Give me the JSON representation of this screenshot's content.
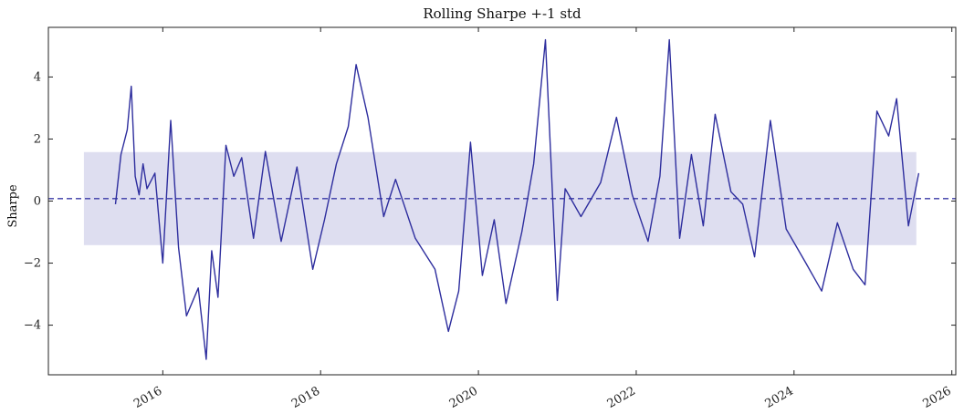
{
  "chart_data": {
    "type": "line",
    "title": "Rolling Sharpe +-1 std",
    "xlabel": "",
    "ylabel": "Sharpe",
    "xlim": [
      2014.55,
      2026.05
    ],
    "ylim": [
      -5.6,
      5.6
    ],
    "x_ticks": [
      2016,
      2018,
      2020,
      2022,
      2024,
      2026
    ],
    "x_tick_labels": [
      "2016",
      "2018",
      "2020",
      "2022",
      "2024",
      "2026"
    ],
    "y_ticks": [
      -4,
      -2,
      0,
      2,
      4
    ],
    "y_tick_labels": [
      "−4",
      "−2",
      "0",
      "2",
      "4"
    ],
    "grid": false,
    "legend": "none",
    "mean_line": 0.08,
    "std_band": [
      -1.42,
      1.58
    ],
    "band_x_range": [
      2015.0,
      2025.55
    ],
    "colors": {
      "line": "#2e2e9e",
      "band": "#dedef0",
      "mean": "#3a3aa6"
    },
    "series": [
      {
        "x": [
          2015.4,
          2015.47,
          2015.55,
          2015.6,
          2015.65,
          2015.7,
          2015.75,
          2015.8,
          2015.9,
          2016.0,
          2016.1,
          2016.2,
          2016.3,
          2016.45,
          2016.55,
          2016.62,
          2016.7,
          2016.8,
          2016.9,
          2017.0,
          2017.15,
          2017.3,
          2017.5,
          2017.7,
          2017.9,
          2018.05,
          2018.2,
          2018.35,
          2018.45,
          2018.6,
          2018.8,
          2018.95,
          2019.2,
          2019.45,
          2019.62,
          2019.75,
          2019.9,
          2020.05,
          2020.2,
          2020.35,
          2020.55,
          2020.7,
          2020.85,
          2021.0,
          2021.1,
          2021.3,
          2021.55,
          2021.75,
          2021.95,
          2022.15,
          2022.3,
          2022.42,
          2022.55,
          2022.7,
          2022.85,
          2023.0,
          2023.2,
          2023.35,
          2023.5,
          2023.7,
          2023.9,
          2024.15,
          2024.35,
          2024.55,
          2024.75,
          2024.9,
          2025.05,
          2025.2,
          2025.3,
          2025.45,
          2025.58
        ],
        "y": [
          -0.1,
          1.5,
          2.3,
          3.7,
          0.8,
          0.2,
          1.2,
          0.4,
          0.9,
          -2.0,
          2.6,
          -1.5,
          -3.7,
          -2.8,
          -5.1,
          -1.6,
          -3.1,
          1.8,
          0.8,
          1.4,
          -1.2,
          1.6,
          -1.3,
          1.1,
          -2.2,
          -0.6,
          1.2,
          2.4,
          4.4,
          2.7,
          -0.5,
          0.7,
          -1.2,
          -2.2,
          -4.2,
          -2.9,
          1.9,
          -2.4,
          -0.6,
          -3.3,
          -1.0,
          1.2,
          5.2,
          -3.2,
          0.4,
          -0.5,
          0.6,
          2.7,
          0.2,
          -1.3,
          0.8,
          5.2,
          -1.2,
          1.5,
          -0.8,
          2.8,
          0.3,
          -0.1,
          -1.8,
          2.6,
          -0.9,
          -2.0,
          -2.9,
          -0.7,
          -2.2,
          -2.7,
          2.9,
          2.1,
          3.3,
          -0.8,
          0.9
        ]
      }
    ]
  }
}
